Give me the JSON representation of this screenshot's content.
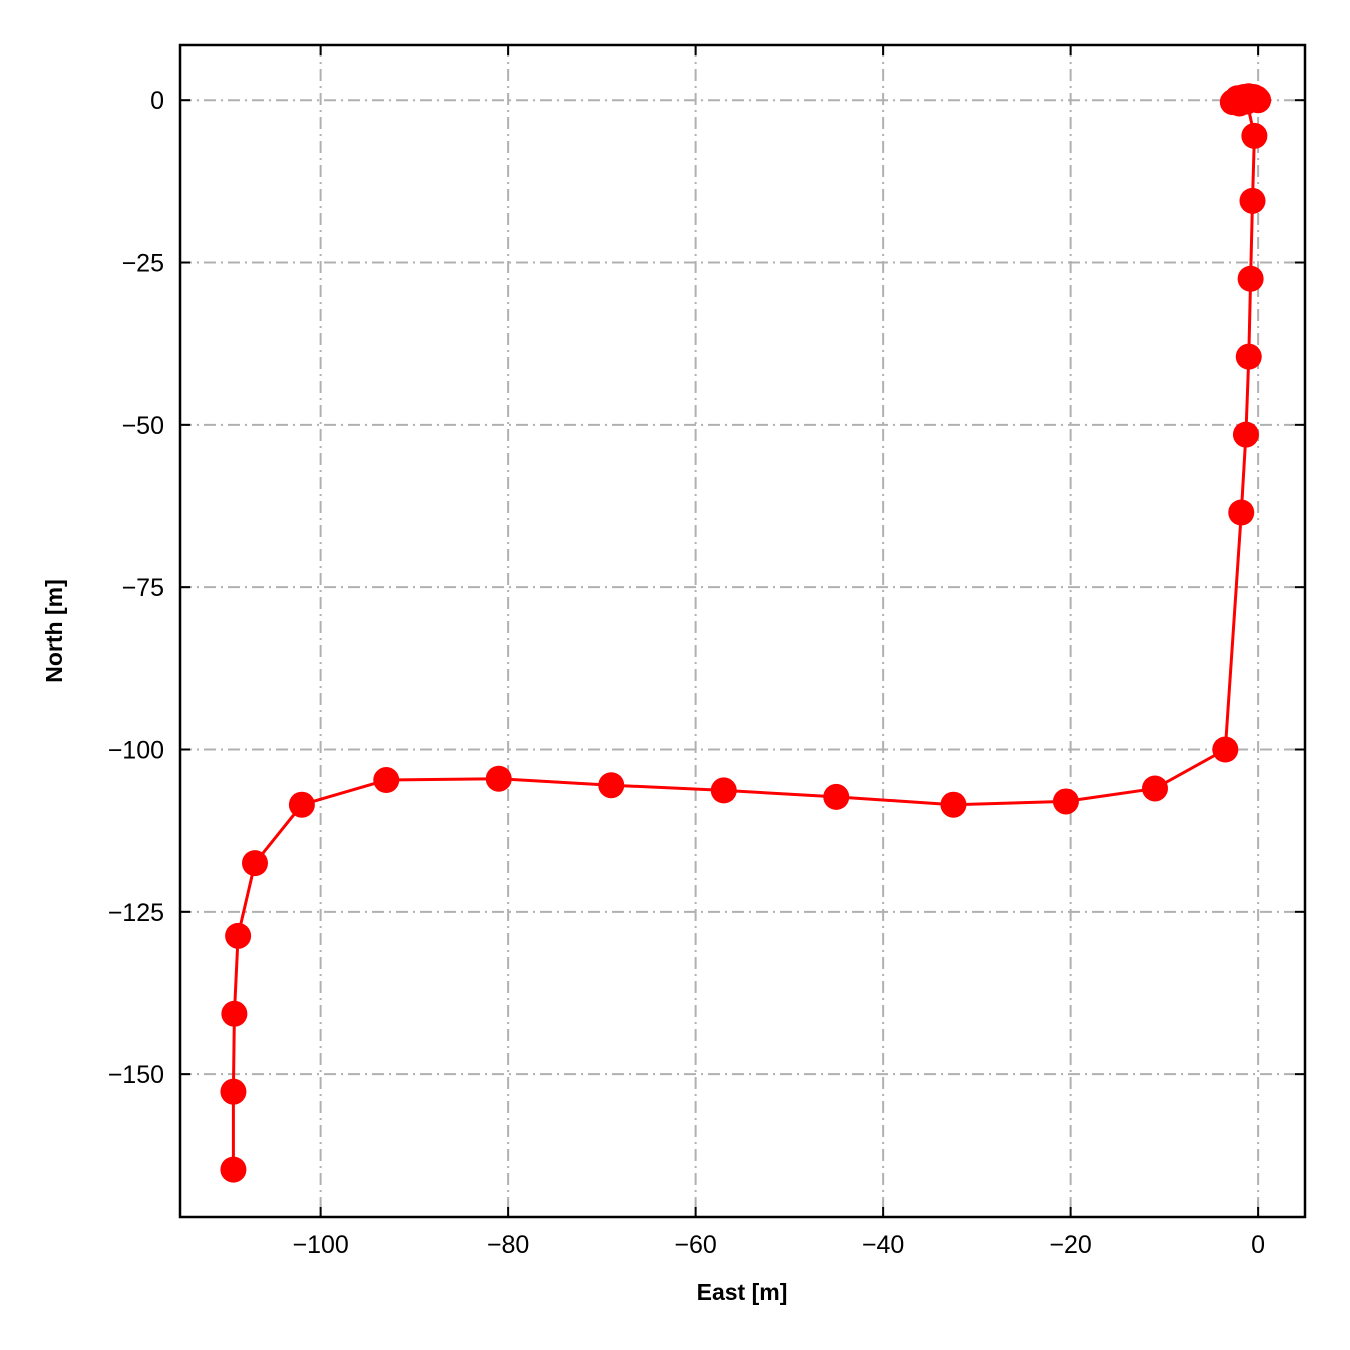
{
  "chart_data": {
    "type": "line",
    "xlabel": "East [m]",
    "ylabel": "North [m]",
    "xlim": [
      -115,
      5
    ],
    "ylim": [
      -172,
      8.5
    ],
    "xticks": [
      -100,
      -80,
      -60,
      -40,
      -20,
      0
    ],
    "yticks": [
      0,
      -25,
      -50,
      -75,
      -100,
      -125,
      -150
    ],
    "xtick_labels": [
      "−100",
      "−80",
      "−60",
      "−40",
      "−20",
      "0"
    ],
    "ytick_labels": [
      "0",
      "−25",
      "−50",
      "−75",
      "−100",
      "−125",
      "−150"
    ],
    "grid": true,
    "legend": "none",
    "series": [
      {
        "color": "#ff0000",
        "marker": "circle",
        "x": [
          0,
          -0.2,
          -0.5,
          -1.0,
          -1.5,
          -2.2,
          -2.7,
          -2.0,
          -1.2,
          -0.4,
          -0.6,
          -0.8,
          -1.0,
          -1.3,
          -1.8,
          -3.5,
          -11,
          -20.5,
          -32.5,
          -45,
          -57,
          -69,
          -81,
          -93,
          -102,
          -107,
          -108.8,
          -109.2,
          -109.3,
          -109.3
        ],
        "y": [
          0,
          0.3,
          0.5,
          0.6,
          0.5,
          0.3,
          -0.3,
          -0.5,
          -0.2,
          -5.5,
          -15.5,
          -27.5,
          -39.5,
          -51.5,
          -63.5,
          -100,
          -106,
          -108,
          -108.5,
          -107.3,
          -106.3,
          -105.5,
          -104.5,
          -104.7,
          -108.5,
          -117.5,
          -128.7,
          -140.7,
          -152.7,
          -164.7
        ]
      }
    ]
  }
}
